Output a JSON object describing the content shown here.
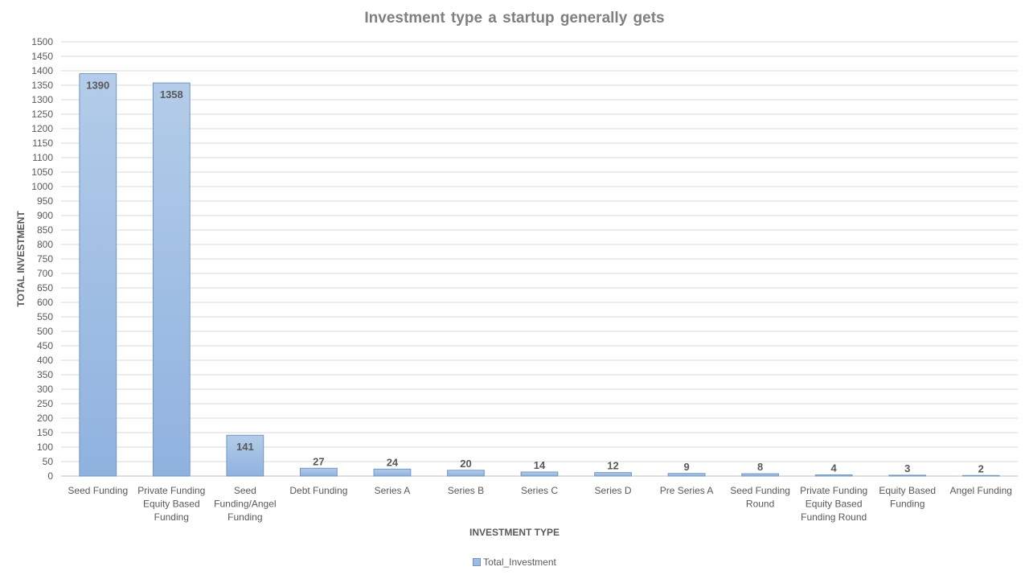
{
  "chart_data": {
    "type": "bar",
    "title": "Investment  type a startup  generally gets",
    "xlabel": "INVESTMENT TYPE",
    "ylabel": "TOTAL INVESTMENT",
    "ylim": [
      0,
      1500
    ],
    "ytick_step": 50,
    "grid": true,
    "legend_position": "bottom",
    "categories": [
      [
        "Seed Funding"
      ],
      [
        "Private Funding",
        "Equity Based",
        "Funding"
      ],
      [
        "Seed",
        "Funding/Angel",
        "Funding"
      ],
      [
        "Debt Funding"
      ],
      [
        "Series A"
      ],
      [
        "Series B"
      ],
      [
        "Series C"
      ],
      [
        "Series D"
      ],
      [
        "Pre Series A"
      ],
      [
        "Seed Funding",
        "Round"
      ],
      [
        "Private Funding",
        "Equity Based",
        "Funding Round"
      ],
      [
        "Equity Based",
        "Funding"
      ],
      [
        "Angel Funding"
      ]
    ],
    "series": [
      {
        "name": "Total_Investment",
        "values": [
          1390,
          1358,
          141,
          27,
          24,
          20,
          14,
          12,
          9,
          8,
          4,
          3,
          2
        ],
        "color": "#9bbbe0",
        "border_color": "#6f96c8"
      }
    ]
  }
}
